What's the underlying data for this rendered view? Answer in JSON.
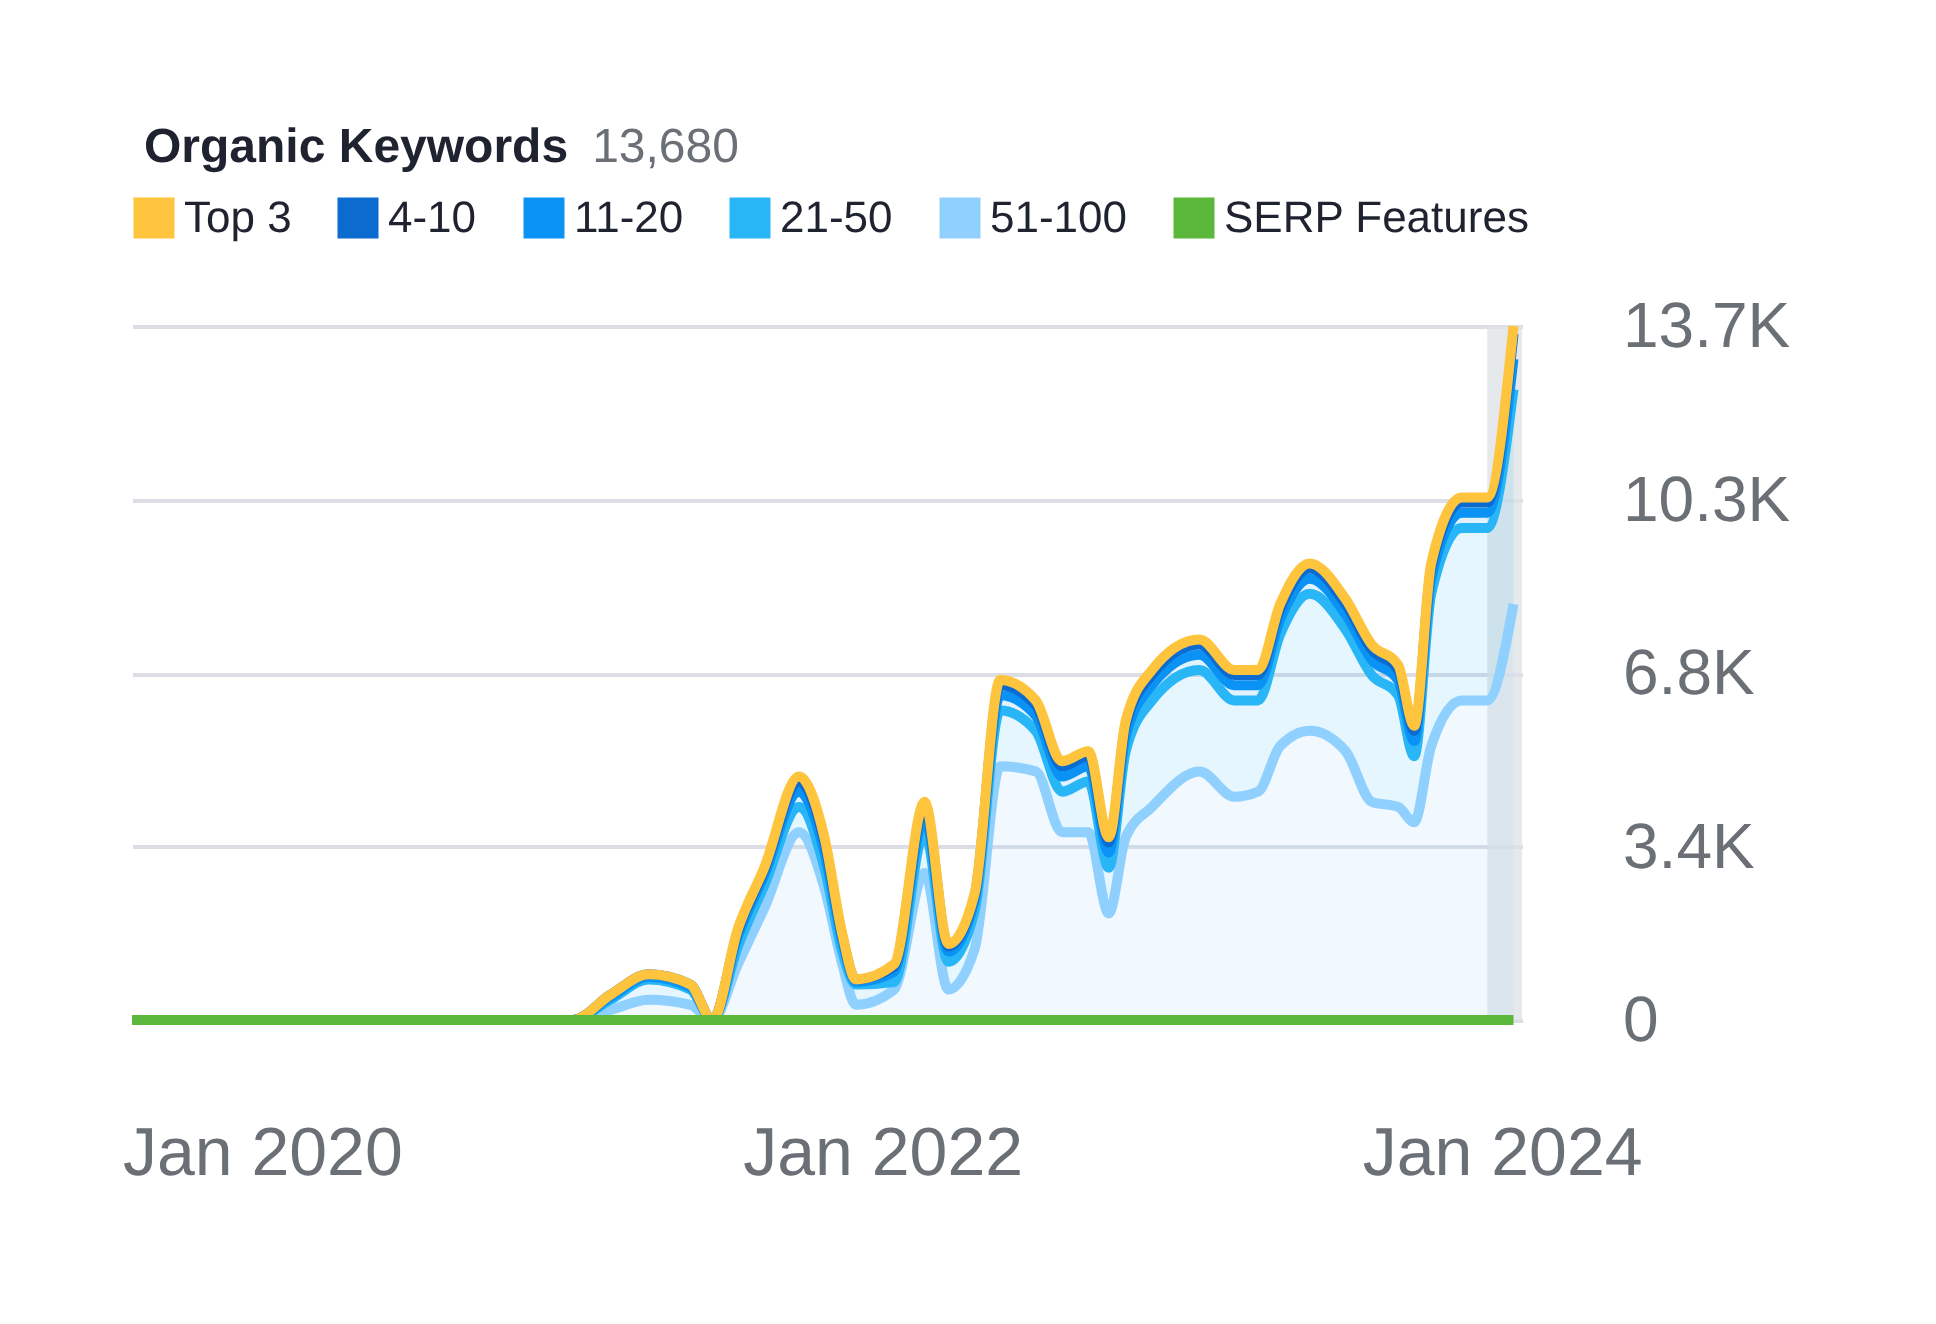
{
  "chart_data": {
    "type": "area",
    "title": "Organic Keywords",
    "subtitle": "13,680",
    "stacked": true,
    "legend": "top",
    "grid": "y",
    "marker": "none",
    "x": [
      "2019-08-01",
      "2020-01-01",
      "2021-01-01",
      "2021-02-15",
      "2021-04-01",
      "2021-05-20",
      "2021-06-15",
      "2021-07-15",
      "2021-08-15",
      "2021-09-25",
      "2021-10-25",
      "2021-11-15",
      "2021-12-01",
      "2022-01-15",
      "2022-02-20",
      "2022-03-20",
      "2022-04-20",
      "2022-05-20",
      "2022-07-01",
      "2022-08-01",
      "2022-09-01",
      "2022-09-25",
      "2022-10-15",
      "2022-11-15",
      "2023-01-10",
      "2023-02-20",
      "2023-03-20",
      "2023-04-15",
      "2023-05-20",
      "2023-07-01",
      "2023-08-01",
      "2023-09-01",
      "2023-09-20",
      "2023-10-10",
      "2023-11-15",
      "2023-12-15",
      "2024-01-15"
    ],
    "series": [
      {
        "name": "51-100",
        "color": "#8fd0ff",
        "values": [
          0,
          0,
          0,
          200,
          400,
          300,
          0,
          1100,
          2200,
          3700,
          2600,
          1100,
          300,
          600,
          2900,
          600,
          1400,
          5000,
          4900,
          3700,
          3700,
          2100,
          3600,
          4200,
          4900,
          4400,
          4500,
          5400,
          5700,
          5300,
          4300,
          4200,
          3900,
          5400,
          6300,
          6300,
          8200
        ]
      },
      {
        "name": "21-50",
        "color": "#29b6f6",
        "values": [
          0,
          0,
          0,
          200,
          400,
          300,
          0,
          350,
          450,
          500,
          400,
          250,
          400,
          150,
          800,
          550,
          750,
          1100,
          800,
          800,
          1000,
          900,
          1700,
          2100,
          2000,
          1900,
          1800,
          2200,
          2700,
          2400,
          2500,
          2200,
          1300,
          3000,
          3400,
          3400,
          4230
        ]
      },
      {
        "name": "11-20",
        "color": "#0a93f5",
        "values": [
          0,
          0,
          0,
          50,
          50,
          50,
          0,
          200,
          200,
          300,
          300,
          200,
          50,
          200,
          300,
          200,
          200,
          300,
          300,
          300,
          300,
          300,
          300,
          300,
          300,
          300,
          300,
          300,
          300,
          300,
          300,
          300,
          300,
          300,
          300,
          300,
          600
        ]
      },
      {
        "name": "4-10",
        "color": "#0b6bcf",
        "values": [
          0,
          0,
          0,
          50,
          50,
          50,
          0,
          100,
          100,
          200,
          200,
          100,
          50,
          100,
          200,
          100,
          100,
          200,
          200,
          200,
          200,
          200,
          200,
          200,
          200,
          200,
          200,
          200,
          200,
          200,
          200,
          200,
          200,
          200,
          200,
          200,
          500
        ]
      },
      {
        "name": "Top 3",
        "color": "#ffc43d",
        "values": [
          0,
          0,
          0,
          0,
          0,
          0,
          0,
          50,
          50,
          100,
          100,
          50,
          0,
          50,
          100,
          50,
          50,
          100,
          100,
          100,
          100,
          100,
          100,
          100,
          100,
          100,
          100,
          100,
          100,
          100,
          100,
          100,
          100,
          100,
          100,
          100,
          150
        ]
      },
      {
        "name": "SERP Features",
        "type": "line",
        "color": "#5cb83a",
        "values": [
          0,
          0,
          0,
          0,
          0,
          0,
          0,
          0,
          0,
          0,
          0,
          0,
          0,
          0,
          0,
          0,
          0,
          0,
          0,
          0,
          0,
          0,
          0,
          0,
          0,
          0,
          0,
          0,
          0,
          0,
          0,
          0,
          0,
          0,
          0,
          0,
          0
        ]
      }
    ],
    "xlim": [
      "2019-08-01",
      "2024-01-25"
    ],
    "xticks": [
      {
        "value": "2020-01-01",
        "label": "Jan 2020"
      },
      {
        "value": "2022-01-01",
        "label": "Jan 2022"
      },
      {
        "value": "2024-01-01",
        "label": "Jan 2024"
      }
    ],
    "ylim": [
      0,
      13680
    ],
    "yticks": [
      {
        "value": 0,
        "label": "0"
      },
      {
        "value": 3420,
        "label": "3.4K"
      },
      {
        "value": 6840,
        "label": "6.8K"
      },
      {
        "value": 10260,
        "label": "10.3K"
      },
      {
        "value": 13680,
        "label": "13.7K"
      }
    ],
    "bands": [
      {
        "axis": "x",
        "from": "2023-12-15",
        "to": "2024-01-25",
        "color": "#dfe3e6"
      }
    ]
  }
}
